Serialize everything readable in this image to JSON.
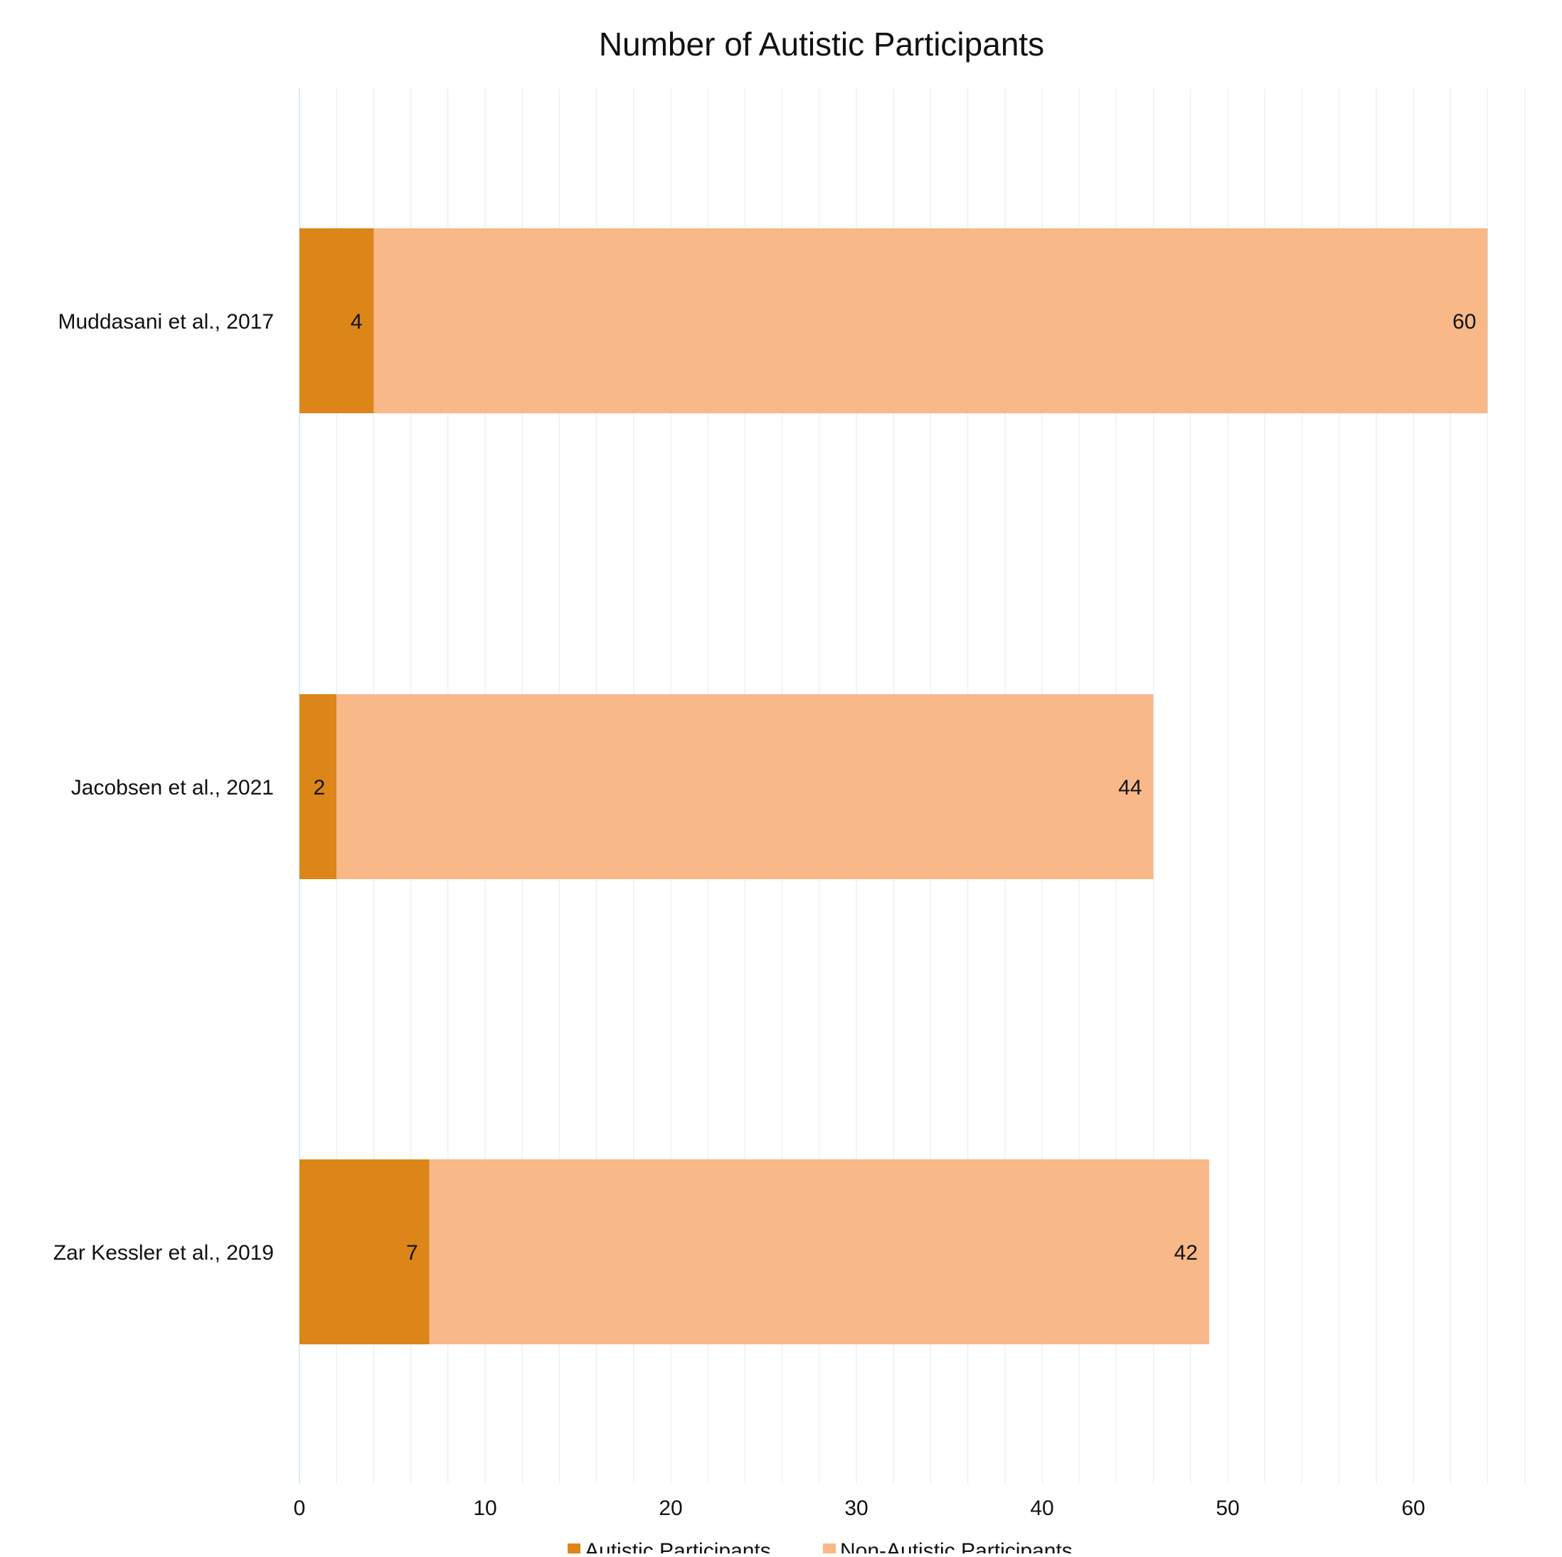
{
  "chart_data": {
    "type": "bar",
    "orientation": "horizontal",
    "stacked": true,
    "title": "Number of Autistic Participants",
    "xlabel": "",
    "ylabel": "",
    "categories": [
      "Muddasani et al., 2017",
      "Jacobsen et al., 2021",
      "Zar Kessler et al., 2019"
    ],
    "series": [
      {
        "name": "Autistic Participants",
        "values": [
          4,
          2,
          7
        ],
        "color": "#DC8518"
      },
      {
        "name": "Non-Autistic Participants",
        "values": [
          60,
          44,
          42
        ],
        "color": "#F8B888"
      }
    ],
    "xlim": [
      0,
      66
    ],
    "xticks": [
      0,
      10,
      20,
      30,
      40,
      50,
      60
    ],
    "minor_grid_step": 2,
    "grid": true,
    "grid_color": "#E6F3FB",
    "axis_color": "#D6EEF9",
    "legend_position": "bottom-center"
  }
}
